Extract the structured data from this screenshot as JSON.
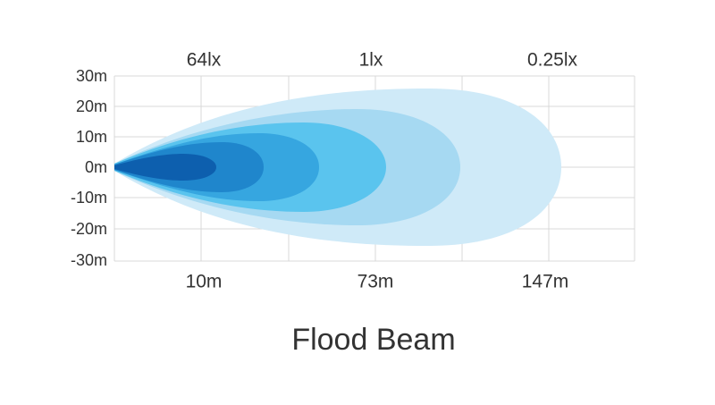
{
  "title": "Flood Beam",
  "lux_labels": [
    "64lx",
    "1lx",
    "0.25lx"
  ],
  "distance_labels": [
    "10m",
    "73m",
    "147m"
  ],
  "width_labels": [
    "30m",
    "20m",
    "10m",
    "0m",
    "-10m",
    "-20m",
    "-30m"
  ]
}
